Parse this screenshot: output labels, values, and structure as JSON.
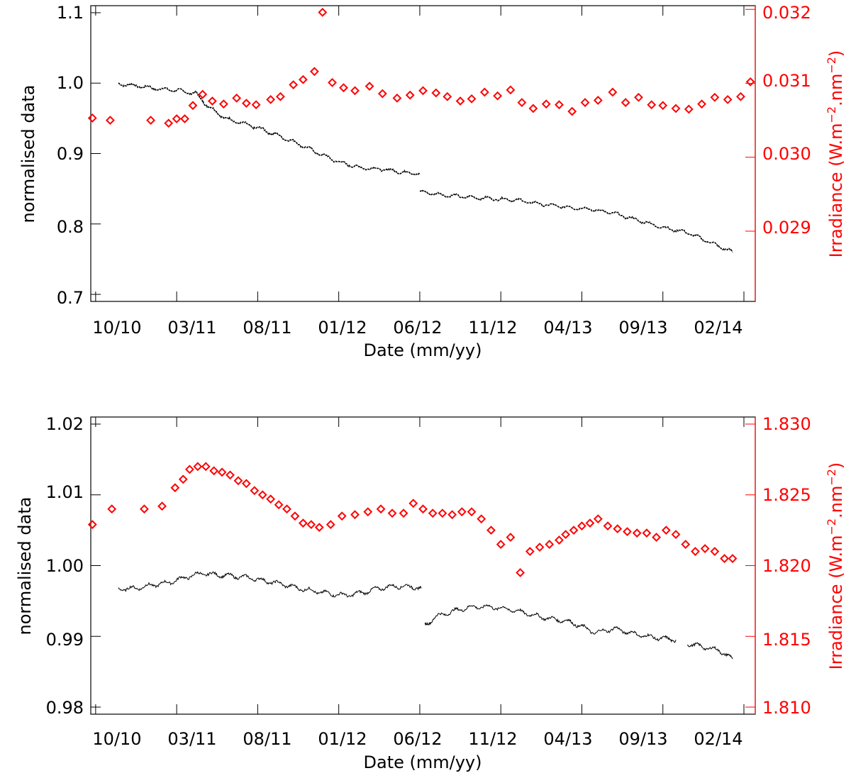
{
  "colors": {
    "primary": "#000000",
    "secondary": "#ff0000",
    "background": "#ffffff"
  },
  "chart_data": [
    {
      "type": "scatter",
      "xlabel": "Date (mm/yy)",
      "ylabel": "normalised data",
      "y2label": "Irradiance (W.m-2.nm-2)",
      "y2label_parts": [
        "Irradiance (W.m",
        "−2",
        ".nm",
        "−2",
        ")"
      ],
      "ylim": [
        0.69,
        1.11
      ],
      "y2lim": [
        0.02805,
        0.03205
      ],
      "yticks": [
        0.7,
        0.8,
        0.9,
        1.0,
        1.1
      ],
      "ytick_labels": [
        "0.7",
        "0.8",
        "0.9",
        "1.0",
        "1.1"
      ],
      "y2ticks": [
        0.029,
        0.03,
        0.031,
        0.032
      ],
      "y2tick_labels": [
        "0.029",
        "0.030",
        "0.031",
        "0.032"
      ],
      "xlim": [
        -0.3,
        40.7
      ],
      "xticks": [
        0,
        5,
        10,
        15,
        20,
        25,
        30,
        35,
        40
      ],
      "xtick_labels": [
        "10/10",
        "03/11",
        "08/11",
        "01/12",
        "06/12",
        "11/12",
        "04/13",
        "09/13",
        "02/14"
      ],
      "series": [
        {
          "name": "normalised data",
          "color": "#000000",
          "style": "dots",
          "segments": [
            {
              "x": [
                1.4,
                2.6,
                3.8,
                5.0,
                6.2,
                6.9,
                8.0,
                9.2,
                10.2,
                11.2,
                12.5,
                13.8,
                15.0,
                16.3,
                17.6,
                18.8,
                20.0
              ],
              "y": [
                0.999,
                0.996,
                0.992,
                0.99,
                0.985,
                0.968,
                0.95,
                0.942,
                0.935,
                0.926,
                0.914,
                0.9,
                0.888,
                0.88,
                0.878,
                0.874,
                0.871
              ]
            },
            {
              "x": [
                20.0,
                21.5,
                23.0,
                24.5,
                26.0,
                27.5,
                29.0,
                30.5,
                32.0,
                33.5,
                35.0,
                36.5,
                38.0,
                39.3
              ],
              "y": [
                0.846,
                0.841,
                0.838,
                0.836,
                0.834,
                0.828,
                0.824,
                0.821,
                0.815,
                0.805,
                0.795,
                0.788,
                0.773,
                0.76
              ]
            }
          ]
        },
        {
          "name": "Irradiance",
          "color": "#ff0000",
          "style": "diamonds",
          "axis": "right",
          "x": [
            -0.2,
            0.9,
            3.4,
            4.5,
            5.0,
            5.5,
            6.0,
            6.6,
            7.2,
            7.9,
            8.7,
            9.3,
            9.9,
            10.8,
            11.4,
            12.2,
            12.8,
            13.5,
            14.0,
            14.6,
            15.3,
            16.0,
            16.9,
            17.7,
            18.6,
            19.4,
            20.2,
            21.0,
            21.7,
            22.5,
            23.2,
            24.0,
            24.8,
            25.6,
            26.3,
            27.0,
            27.8,
            28.6,
            29.4,
            30.2,
            31.0,
            31.9,
            32.7,
            33.5,
            34.3,
            35.0,
            35.8,
            36.6,
            37.4,
            38.2,
            39.0,
            39.8,
            40.4
          ],
          "y": [
            0.03053,
            0.0305,
            0.0305,
            0.03046,
            0.03052,
            0.03052,
            0.0307,
            0.03085,
            0.03076,
            0.03072,
            0.0308,
            0.03073,
            0.03071,
            0.03078,
            0.03082,
            0.03098,
            0.03105,
            0.03116,
            0.03196,
            0.03101,
            0.03094,
            0.0309,
            0.03096,
            0.03086,
            0.0308,
            0.03084,
            0.0309,
            0.03087,
            0.03082,
            0.03076,
            0.03079,
            0.03088,
            0.03083,
            0.03091,
            0.03074,
            0.03066,
            0.03072,
            0.03071,
            0.03062,
            0.03074,
            0.03077,
            0.03088,
            0.03074,
            0.03081,
            0.03071,
            0.0307,
            0.03066,
            0.03065,
            0.03072,
            0.03081,
            0.03078,
            0.03082,
            0.03102
          ]
        }
      ]
    },
    {
      "type": "scatter",
      "xlabel": "Date (mm/yy)",
      "ylabel": "normalised data",
      "y2label": "Irradiance (W.m-2.nm-2)",
      "y2label_parts": [
        "Irradiance (W.m",
        "−2",
        ".nm",
        "−2",
        ")"
      ],
      "ylim": [
        0.979,
        1.021
      ],
      "y2lim": [
        1.8095,
        1.8305
      ],
      "yticks": [
        0.98,
        0.99,
        1.0,
        1.01,
        1.02
      ],
      "ytick_labels": [
        "0.98",
        "0.99",
        "1.00",
        "1.01",
        "1.02"
      ],
      "y2ticks": [
        1.81,
        1.815,
        1.82,
        1.825,
        1.83
      ],
      "y2tick_labels": [
        "1.810",
        "1.815",
        "1.820",
        "1.825",
        "1.830"
      ],
      "xlim": [
        -0.3,
        40.7
      ],
      "xticks": [
        0,
        5,
        10,
        15,
        20,
        25,
        30,
        35,
        40
      ],
      "xtick_labels": [
        "10/10",
        "03/11",
        "08/11",
        "01/12",
        "06/12",
        "11/12",
        "04/13",
        "09/13",
        "02/14"
      ],
      "series": [
        {
          "name": "normalised data",
          "color": "#000000",
          "style": "line",
          "segments": [
            {
              "x": [
                1.4,
                2.5,
                3.4,
                4.5,
                5.5,
                6.5,
                7.5,
                8.5,
                9.5,
                10.5,
                11.5,
                12.5,
                13.5,
                14.5,
                15.5,
                16.5,
                17.5,
                18.5,
                19.5,
                20.1
              ],
              "y": [
                0.9967,
                0.9968,
                0.9972,
                0.9976,
                0.9983,
                0.9989,
                0.9987,
                0.9985,
                0.9983,
                0.9978,
                0.9974,
                0.9968,
                0.9964,
                0.996,
                0.9958,
                0.9962,
                0.9968,
                0.9971,
                0.997,
                0.9968
              ]
            },
            {
              "x": [
                20.3,
                21.0,
                22.0,
                23.0,
                24.0,
                25.0,
                26.0,
                27.0,
                28.0,
                29.0,
                29.9,
                30.8,
                32.0,
                33.0,
                34.0,
                35.0,
                35.8
              ],
              "y": [
                0.9915,
                0.9928,
                0.9935,
                0.9941,
                0.9942,
                0.994,
                0.9936,
                0.993,
                0.9925,
                0.9922,
                0.9915,
                0.9905,
                0.9911,
                0.9905,
                0.99,
                0.9897,
                0.9895
              ]
            },
            {
              "x": [
                36.5,
                37.5,
                38.5,
                39.3
              ],
              "y": [
                0.989,
                0.9885,
                0.988,
                0.9868
              ]
            }
          ]
        },
        {
          "name": "Irradiance",
          "color": "#ff0000",
          "style": "diamonds",
          "axis": "right",
          "x": [
            -0.2,
            1.0,
            3.0,
            4.1,
            4.9,
            5.4,
            5.8,
            6.3,
            6.8,
            7.3,
            7.8,
            8.3,
            8.8,
            9.3,
            9.8,
            10.3,
            10.8,
            11.3,
            11.8,
            12.3,
            12.8,
            13.3,
            13.8,
            14.5,
            15.2,
            16.0,
            16.8,
            17.6,
            18.3,
            19.0,
            19.6,
            20.2,
            20.8,
            21.4,
            22.0,
            22.6,
            23.2,
            23.8,
            24.4,
            25.0,
            25.6,
            26.2,
            26.8,
            27.4,
            28.0,
            28.6,
            29.0,
            29.5,
            30.0,
            30.5,
            31.0,
            31.6,
            32.2,
            32.8,
            33.4,
            34.0,
            34.6,
            35.2,
            35.8,
            36.4,
            37.0,
            37.6,
            38.2,
            38.8,
            39.3
          ],
          "y": [
            1.8229,
            1.824,
            1.824,
            1.8242,
            1.8255,
            1.8261,
            1.8268,
            1.827,
            1.827,
            1.8267,
            1.8266,
            1.8264,
            1.826,
            1.8258,
            1.8253,
            1.825,
            1.8247,
            1.8243,
            1.824,
            1.8235,
            1.823,
            1.8229,
            1.8227,
            1.8229,
            1.8235,
            1.8236,
            1.8238,
            1.824,
            1.8237,
            1.8237,
            1.8244,
            1.824,
            1.8237,
            1.8237,
            1.8236,
            1.8238,
            1.8238,
            1.8233,
            1.8225,
            1.8215,
            1.822,
            1.8195,
            1.821,
            1.8213,
            1.8215,
            1.8218,
            1.8222,
            1.8225,
            1.8228,
            1.823,
            1.8233,
            1.8228,
            1.8226,
            1.8224,
            1.8223,
            1.8223,
            1.822,
            1.8225,
            1.8222,
            1.8215,
            1.821,
            1.8212,
            1.821,
            1.8205,
            1.8205
          ]
        }
      ]
    }
  ]
}
